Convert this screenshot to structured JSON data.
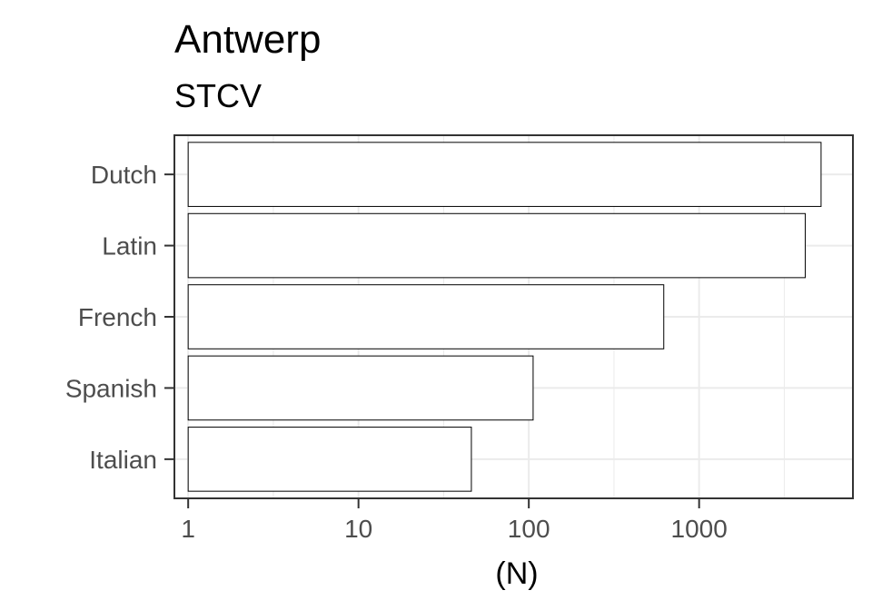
{
  "chart_data": {
    "type": "bar",
    "orientation": "horizontal",
    "title": "Antwerp",
    "subtitle": "STCV",
    "xlabel": "(N)",
    "ylabel": "",
    "x_scale": "log10",
    "xlim": [
      0.83,
      8000
    ],
    "x_ticks": [
      1,
      10,
      100,
      1000
    ],
    "x_tick_labels": [
      "1",
      "10",
      "100",
      "1000"
    ],
    "categories": [
      "Dutch",
      "Latin",
      "French",
      "Spanish",
      "Italian"
    ],
    "values": [
      5200,
      4200,
      620,
      106,
      46
    ],
    "bar_fill": "#ffffff",
    "bar_stroke": "#000000",
    "grid": true,
    "grid_color": "#ebebeb",
    "panel_border_color": "#333333"
  }
}
